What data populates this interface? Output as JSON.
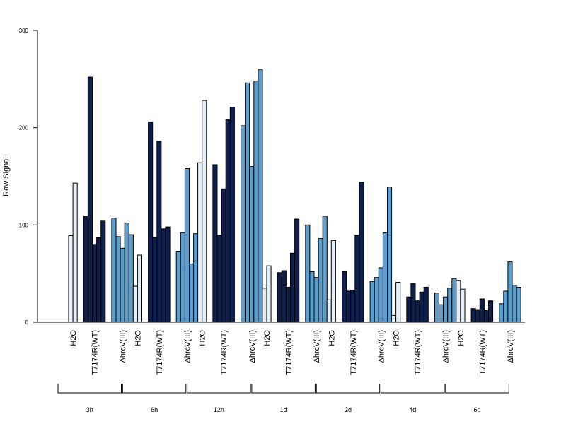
{
  "chart_data": {
    "type": "bar",
    "title": "",
    "ylabel": "Raw Signal",
    "xlabel": "",
    "ylim": [
      0,
      300
    ],
    "yticks": [
      0,
      100,
      200,
      300
    ],
    "grid": false,
    "group_labels": [
      "H2O",
      "T7174R(WT)",
      "ΔhrcV(III)"
    ],
    "series_colors": [
      "#e6eef7",
      "#0f1f4d",
      "#5a9fcf"
    ],
    "timepoints": [
      {
        "label": "3h",
        "groups": [
          [
            89,
            143
          ],
          [
            109,
            252,
            80,
            87,
            104
          ],
          [
            107,
            88,
            76,
            102,
            90
          ]
        ]
      },
      {
        "label": "6h",
        "groups": [
          [
            37,
            69
          ],
          [
            206,
            87,
            186,
            96,
            98
          ],
          [
            73,
            92,
            158,
            60,
            91
          ]
        ]
      },
      {
        "label": "12h",
        "groups": [
          [
            164,
            228
          ],
          [
            162,
            89,
            137,
            208,
            221
          ],
          [
            202,
            246,
            160,
            248,
            260
          ]
        ]
      },
      {
        "label": "1d",
        "groups": [
          [
            35,
            58
          ],
          [
            51,
            53,
            36,
            71,
            106
          ],
          [
            100,
            52,
            46,
            86,
            109
          ]
        ]
      },
      {
        "label": "2d",
        "groups": [
          [
            23,
            84
          ],
          [
            52,
            32,
            33,
            89,
            144
          ],
          [
            42,
            46,
            56,
            92,
            139
          ]
        ]
      },
      {
        "label": "4d",
        "groups": [
          [
            7,
            41
          ],
          [
            26,
            40,
            22,
            31,
            36
          ],
          [
            30,
            18,
            26,
            35,
            45
          ]
        ]
      },
      {
        "label": "6d",
        "groups": [
          [
            43,
            34
          ],
          [
            14,
            13,
            24,
            12,
            22
          ],
          [
            19,
            32,
            62,
            38,
            36
          ]
        ]
      }
    ]
  }
}
